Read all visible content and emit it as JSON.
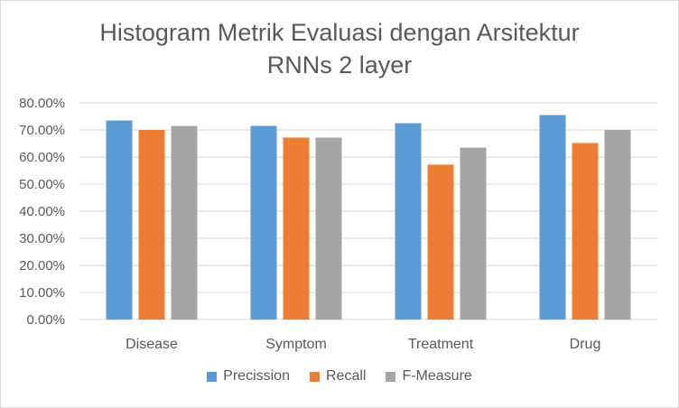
{
  "chart_data": {
    "type": "bar",
    "title_lines": [
      "Histogram Metrik Evaluasi dengan Arsitektur",
      "RNNs 2 layer"
    ],
    "categories": [
      "Disease",
      "Symptom",
      "Treatment",
      "Drug"
    ],
    "series": [
      {
        "name": "Precission",
        "color": "#5b9bd5",
        "values": [
          73.5,
          71.5,
          72.5,
          75.5
        ]
      },
      {
        "name": "Recall",
        "color": "#ed7d31",
        "values": [
          70.0,
          67.2,
          57.2,
          65.2
        ]
      },
      {
        "name": "F-Measure",
        "color": "#a5a5a5",
        "values": [
          71.5,
          67.2,
          63.5,
          70.0
        ]
      }
    ],
    "yticks": [
      "0.00%",
      "10.00%",
      "20.00%",
      "30.00%",
      "40.00%",
      "50.00%",
      "60.00%",
      "70.00%",
      "80.00%"
    ],
    "ylim": [
      0,
      80
    ],
    "grid": true,
    "legend_position": "bottom"
  }
}
